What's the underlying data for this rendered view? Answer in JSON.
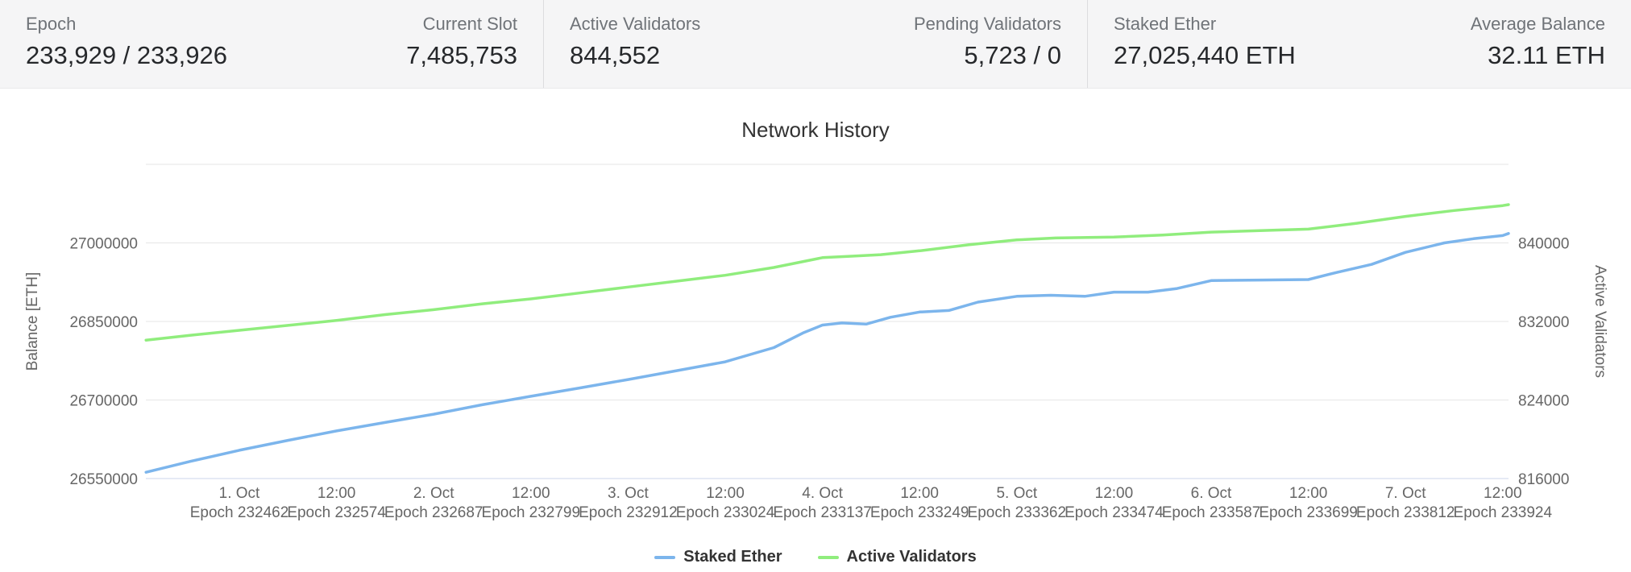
{
  "header": {
    "stats": [
      {
        "label": "Epoch",
        "value": "233,929 / 233,926"
      },
      {
        "label": "Current Slot",
        "value": "7,485,753"
      },
      {
        "label": "Active Validators",
        "value": "844,552"
      },
      {
        "label": "Pending Validators",
        "value": "5,723 / 0"
      },
      {
        "label": "Staked Ether",
        "value": "27,025,440 ETH"
      },
      {
        "label": "Average Balance",
        "value": "32.11 ETH"
      }
    ]
  },
  "chart_data": {
    "type": "line",
    "title": "Network History",
    "legend_position": "bottom",
    "grid": "horizontal-only",
    "x_range": [
      -0.96,
      13.06
    ],
    "x_labels": [
      {
        "date": "1. Oct",
        "epoch": "Epoch 232462"
      },
      {
        "date": "12:00",
        "epoch": "Epoch 232574"
      },
      {
        "date": "2. Oct",
        "epoch": "Epoch 232687"
      },
      {
        "date": "12:00",
        "epoch": "Epoch 232799"
      },
      {
        "date": "3. Oct",
        "epoch": "Epoch 232912"
      },
      {
        "date": "12:00",
        "epoch": "Epoch 233024"
      },
      {
        "date": "4. Oct",
        "epoch": "Epoch 233137"
      },
      {
        "date": "12:00",
        "epoch": "Epoch 233249"
      },
      {
        "date": "5. Oct",
        "epoch": "Epoch 233362"
      },
      {
        "date": "12:00",
        "epoch": "Epoch 233474"
      },
      {
        "date": "6. Oct",
        "epoch": "Epoch 233587"
      },
      {
        "date": "12:00",
        "epoch": "Epoch 233699"
      },
      {
        "date": "7. Oct",
        "epoch": "Epoch 233812"
      },
      {
        "date": "12:00",
        "epoch": "Epoch 233924"
      }
    ],
    "y_left": {
      "label": "Balance [ETH]",
      "ticks": [
        26550000,
        26700000,
        26850000,
        27000000
      ],
      "tick_step": 150000
    },
    "y_right": {
      "label": "Active Validators",
      "ticks": [
        816000,
        824000,
        832000,
        840000
      ],
      "tick_step": 8000
    },
    "colors": {
      "grid": "#e6e6e6",
      "axis_line": "#ccd6eb",
      "staked_ether": "#7cb5ec",
      "active_validators": "#90ed7d"
    },
    "series": [
      {
        "name": "Staked Ether",
        "axis": "left",
        "color": "#7cb5ec",
        "points": [
          [
            -0.96,
            26562000
          ],
          [
            -0.5,
            26583000
          ],
          [
            0,
            26604000
          ],
          [
            0.5,
            26623000
          ],
          [
            1,
            26641000
          ],
          [
            1.5,
            26657000
          ],
          [
            2,
            26673000
          ],
          [
            2.5,
            26691000
          ],
          [
            3,
            26707000
          ],
          [
            3.5,
            26723000
          ],
          [
            4,
            26739000
          ],
          [
            4.5,
            26756000
          ],
          [
            5,
            26773000
          ],
          [
            5.5,
            26800000
          ],
          [
            5.8,
            26828000
          ],
          [
            6,
            26843000
          ],
          [
            6.2,
            26847000
          ],
          [
            6.45,
            26845000
          ],
          [
            6.7,
            26858000
          ],
          [
            7,
            26868000
          ],
          [
            7.3,
            26871000
          ],
          [
            7.6,
            26887000
          ],
          [
            8,
            26898000
          ],
          [
            8.35,
            26900000
          ],
          [
            8.7,
            26898000
          ],
          [
            9,
            26906000
          ],
          [
            9.35,
            26906000
          ],
          [
            9.65,
            26913000
          ],
          [
            10,
            26928000
          ],
          [
            10.5,
            26929000
          ],
          [
            11,
            26930000
          ],
          [
            11.3,
            26944000
          ],
          [
            11.65,
            26959000
          ],
          [
            12,
            26982000
          ],
          [
            12.4,
            27000000
          ],
          [
            12.7,
            27008000
          ],
          [
            13,
            27014000
          ],
          [
            13.06,
            27018000
          ]
        ]
      },
      {
        "name": "Active Validators",
        "axis": "right",
        "color": "#90ed7d",
        "points": [
          [
            -0.96,
            830100
          ],
          [
            -0.5,
            830600
          ],
          [
            0,
            831100
          ],
          [
            0.5,
            831600
          ],
          [
            1,
            832100
          ],
          [
            1.5,
            832700
          ],
          [
            2,
            833200
          ],
          [
            2.5,
            833800
          ],
          [
            3,
            834300
          ],
          [
            3.5,
            834900
          ],
          [
            4,
            835500
          ],
          [
            4.5,
            836100
          ],
          [
            5,
            836700
          ],
          [
            5.5,
            837500
          ],
          [
            6,
            838500
          ],
          [
            6.3,
            838650
          ],
          [
            6.6,
            838800
          ],
          [
            7,
            839200
          ],
          [
            7.5,
            839800
          ],
          [
            8,
            840300
          ],
          [
            8.4,
            840500
          ],
          [
            9,
            840600
          ],
          [
            9.5,
            840800
          ],
          [
            10,
            841100
          ],
          [
            10.5,
            841250
          ],
          [
            11,
            841400
          ],
          [
            11.5,
            842000
          ],
          [
            12,
            842700
          ],
          [
            12.5,
            843300
          ],
          [
            13,
            843800
          ],
          [
            13.06,
            843900
          ]
        ]
      }
    ]
  }
}
